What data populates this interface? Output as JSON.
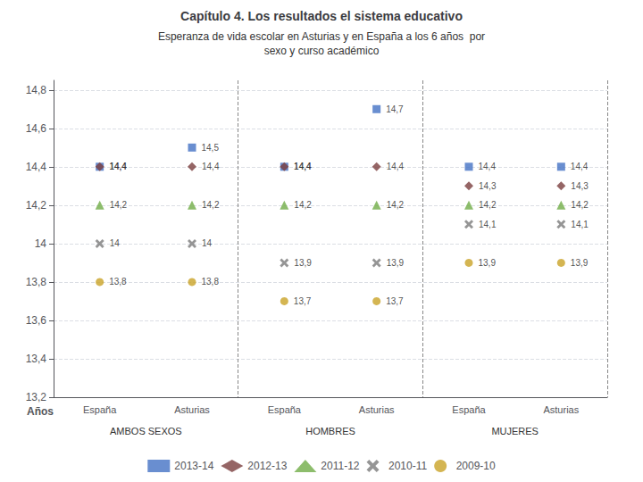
{
  "chart_data": {
    "type": "scatter",
    "title": "Capítulo 4. Los resultados el sistema educativo",
    "subtitle": "Esperanza de vida escolar en Asturias y en España a los 6 años  por\nsexo y curso académico",
    "ylabel": "Años",
    "categories": [
      "España",
      "Asturias",
      "España",
      "Asturias",
      "España",
      "Asturias"
    ],
    "annotations": [
      "AMBOS SEXOS",
      "HOMBRES",
      "MUJERES"
    ],
    "series": [
      {
        "name": "2013-14",
        "color": "#4472C4",
        "marker": "square",
        "values": [
          14.4,
          14.5,
          14.4,
          14.7,
          14.4,
          14.4
        ],
        "value_labels": [
          "14,4",
          "14,5",
          "14,4",
          "14,7",
          "14,4",
          "14,4"
        ]
      },
      {
        "name": "2012-13",
        "color": "#7B3F3F",
        "marker": "diamond",
        "values": [
          14.4,
          14.4,
          14.4,
          14.4,
          14.3,
          14.3
        ],
        "value_labels": [
          "14,4",
          "14,4",
          "14,4",
          "14,4",
          "14,3",
          "14,3"
        ]
      },
      {
        "name": "2011-12",
        "color": "#70AD47",
        "marker": "triangle",
        "values": [
          14.2,
          14.2,
          14.2,
          14.2,
          14.2,
          14.2
        ],
        "value_labels": [
          "14,2",
          "14,2",
          "14,2",
          "14,2",
          "14,2",
          "14,2"
        ]
      },
      {
        "name": "2010-11",
        "color": "#7B7B7B",
        "marker": "x",
        "values": [
          14.0,
          14.0,
          13.9,
          13.9,
          14.1,
          14.1
        ],
        "value_labels": [
          "14",
          "14",
          "13,9",
          "13,9",
          "14,1",
          "14,1"
        ]
      },
      {
        "name": "2009-10",
        "color": "#C9A227",
        "marker": "circle",
        "values": [
          13.8,
          13.8,
          13.7,
          13.7,
          13.9,
          13.9
        ],
        "value_labels": [
          "13,8",
          "13,8",
          "13,7",
          "13,7",
          "13,9",
          "13,9"
        ]
      }
    ],
    "ylim": [
      13.2,
      14.85
    ],
    "yticks": [
      {
        "value": 13.2,
        "label": "13,2"
      },
      {
        "value": 13.4,
        "label": "13,4"
      },
      {
        "value": 13.6,
        "label": "13,6"
      },
      {
        "value": 13.8,
        "label": "13,8"
      },
      14,
      {
        "value": 14.2,
        "label": "14,2"
      },
      {
        "value": 14.4,
        "label": "14,4"
      },
      {
        "value": 14.6,
        "label": "14,6"
      },
      {
        "value": 14.8,
        "label": "14,8"
      }
    ],
    "grid": true,
    "legend": "bottom",
    "data_labels": true
  }
}
